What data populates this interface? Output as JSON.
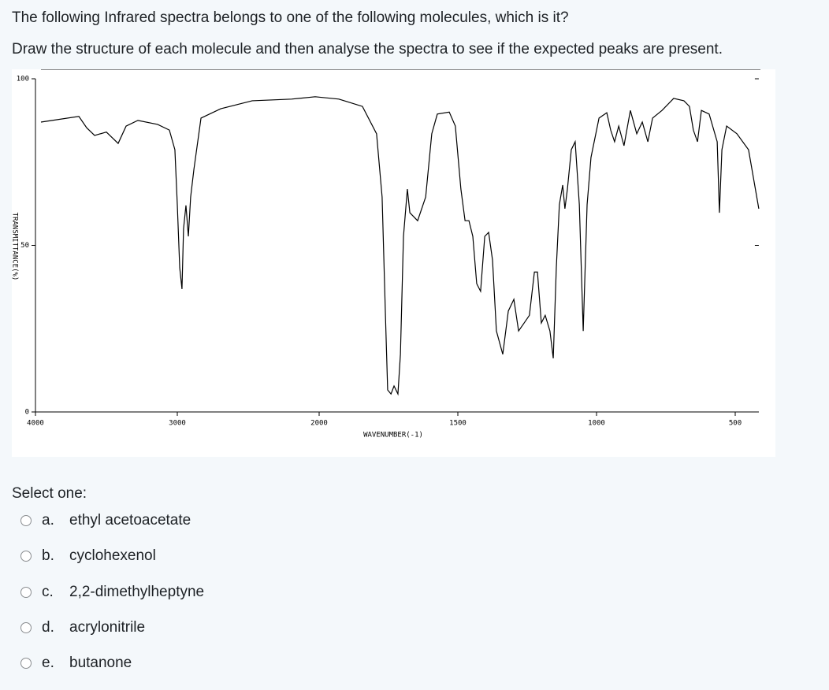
{
  "question": {
    "text": "The following Infrared spectra belongs to one of the following molecules, which is it?",
    "instruction": "Draw the structure of each molecule and then analyse the spectra to see if the expected peaks are present.",
    "prompt": "Select one:",
    "options": [
      {
        "letter": "a.",
        "label": "ethyl acetoacetate"
      },
      {
        "letter": "b.",
        "label": "cyclohexenol"
      },
      {
        "letter": "c.",
        "label": "2,2-dimethylheptyne"
      },
      {
        "letter": "d.",
        "label": "acrylonitrile"
      },
      {
        "letter": "e.",
        "label": "butanone"
      }
    ]
  },
  "chart_data": {
    "type": "line",
    "x_label": "WAVENUMBER(-1)",
    "y_label": "TRANSMITTANCE(%)",
    "xlim": [
      4000,
      415
    ],
    "xticks": [
      4000,
      3000,
      2000,
      1500,
      1000,
      500
    ],
    "ylim": [
      0,
      100
    ],
    "yticks": [
      0,
      50,
      100
    ],
    "color": "#000000",
    "x": [
      3961,
      3694,
      3639,
      3583,
      3500,
      3417,
      3361,
      3278,
      3139,
      3056,
      3017,
      3000,
      2983,
      2967,
      2956,
      2939,
      2922,
      2906,
      2883,
      2833,
      2694,
      2472,
      2194,
      2028,
      1929,
      1844,
      1793,
      1773,
      1761,
      1753,
      1741,
      1730,
      1716,
      1707,
      1696,
      1682,
      1673,
      1645,
      1616,
      1594,
      1574,
      1531,
      1509,
      1489,
      1474,
      1460,
      1446,
      1432,
      1418,
      1403,
      1389,
      1375,
      1361,
      1338,
      1318,
      1298,
      1281,
      1261,
      1242,
      1224,
      1213,
      1199,
      1185,
      1168,
      1156,
      1145,
      1134,
      1122,
      1114,
      1105,
      1091,
      1077,
      1062,
      1048,
      1034,
      1020,
      991,
      963,
      949,
      935,
      920,
      901,
      878,
      855,
      835,
      815,
      798,
      764,
      722,
      685,
      665,
      651,
      636,
      622,
      594,
      565,
      557,
      548,
      531,
      494,
      452,
      415
    ],
    "values": [
      87,
      88.7,
      85.3,
      83,
      84,
      80.6,
      85.8,
      87.5,
      86.3,
      84.6,
      78.7,
      62.2,
      43.3,
      36.9,
      55,
      62,
      52.7,
      64.5,
      72.8,
      88.2,
      91,
      93.4,
      93.9,
      94.6,
      93.9,
      91.7,
      83.5,
      64.5,
      29,
      6.6,
      5.4,
      7.8,
      5.4,
      17.3,
      52.7,
      66.9,
      59.8,
      57.4,
      64.5,
      83.5,
      89.4,
      90,
      85.8,
      66.9,
      57.4,
      57.4,
      52.7,
      38.5,
      36.2,
      52.7,
      53.9,
      45.6,
      24.3,
      17.3,
      30.3,
      33.8,
      24.3,
      26.7,
      29,
      42,
      42,
      26.7,
      29,
      24.3,
      16.1,
      43.3,
      62.2,
      68.1,
      61,
      66.9,
      78.7,
      81.1,
      62.2,
      24.3,
      62.2,
      76.4,
      88.2,
      89.8,
      84.6,
      81.1,
      85.8,
      79.9,
      90.5,
      83.5,
      87,
      81.1,
      88.2,
      90.5,
      94.1,
      93.4,
      91.7,
      84.6,
      81.1,
      90.5,
      89.4,
      81.1,
      59.8,
      78.7,
      85.8,
      83.5,
      78.7,
      61
    ]
  }
}
